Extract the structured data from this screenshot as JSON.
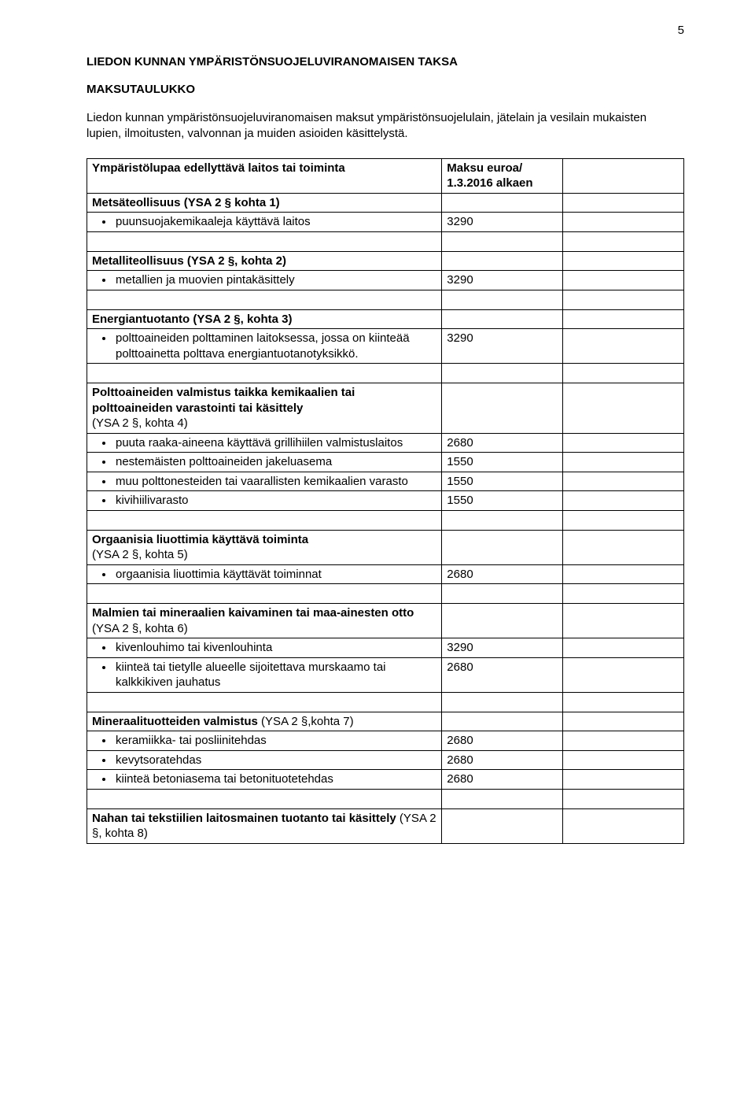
{
  "page_number": "5",
  "main_title": "LIEDON KUNNAN YMPÄRISTÖNSUOJELUVIRANOMAISEN TAKSA",
  "subtitle": "MAKSUTAULUKKO",
  "intro": "Liedon kunnan ympäristönsuojeluviranomaisen maksut ympäristönsuojelulain, jätelain ja vesilain mukaisten lupien, ilmoitusten, valvonnan ja muiden asioiden käsittelystä.",
  "header_cells": {
    "left": "Ympäristölupaa edellyttävä laitos tai toiminta",
    "right_l1": "Maksu euroa/",
    "right_l2": "1.3.2016 alkaen"
  },
  "rows": {
    "r1_text": "Metsäteollisuus (YSA 2 § kohta 1)",
    "r2_text": "puunsuojakemikaaleja käyttävä laitos",
    "r2_fee": "3290",
    "r3_text": "Metalliteollisuus (YSA 2 §, kohta 2)",
    "r4_text": "metallien ja muovien pintakäsittely",
    "r4_fee": "3290",
    "r5_text": "Energiantuotanto (YSA 2 §, kohta 3)",
    "r6_text": "polttoaineiden polttaminen laitoksessa, jossa on kiinteää polttoainetta polttava energiantuotanotyksikkö.",
    "r6_fee": "3290",
    "r7_l1": "Polttoaineiden valmistus taikka kemikaalien tai polttoaineiden varastointi tai käsittely",
    "r7_l2": "(YSA 2 §, kohta 4)",
    "r8_text": "puuta raaka-aineena käyttävä grillihiilen valmistuslaitos",
    "r8_fee": "2680",
    "r9_text": "nestemäisten polttoaineiden jakeluasema",
    "r9_fee": "1550",
    "r10_text": "muu polttonesteiden tai vaarallisten kemikaalien varasto",
    "r10_fee": "1550",
    "r11_text": "kivihiilivarasto",
    "r11_fee": "1550",
    "r12_l1": "Orgaanisia liuottimia käyttävä toiminta",
    "r12_l2": "(YSA 2 §, kohta 5)",
    "r13_text": "orgaanisia liuottimia käyttävät toiminnat",
    "r13_fee": "2680",
    "r14_l1": "Malmien tai mineraalien kaivaminen tai maa-ainesten otto",
    "r14_l2": " (YSA 2 §, kohta 6)",
    "r15_text": "kivenlouhimo tai kivenlouhinta",
    "r15_fee": "3290",
    "r16_text": "kiinteä tai tietylle alueelle sijoitettava murskaamo tai kalkkikiven jauhatus",
    "r16_fee": "2680",
    "r17_l1": "Mineraalituotteiden valmistus",
    "r17_l2": " (YSA 2 §,kohta 7)",
    "r18_text": "keramiikka- tai posliinitehdas",
    "r18_fee": "2680",
    "r19_text": "kevytsoratehdas",
    "r19_fee": "2680",
    "r20_text": "kiinteä betoniasema tai betonituotetehdas",
    "r20_fee": "2680",
    "r21_l1": "Nahan tai tekstiilien laitosmainen tuotanto tai käsittely",
    "r21_l2": " (YSA 2 §, kohta 8)"
  }
}
